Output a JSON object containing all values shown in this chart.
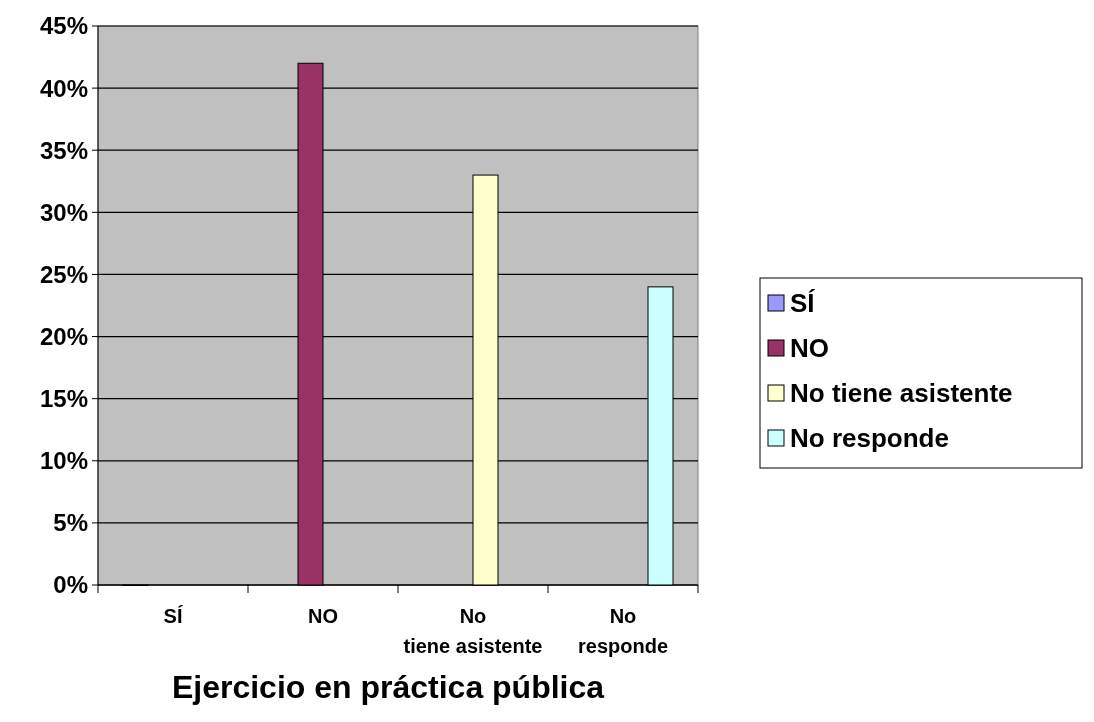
{
  "chart_data": {
    "type": "bar",
    "title": "Ejercicio en práctica pública",
    "categories": [
      "SÍ",
      "NO",
      "No tiene asistente",
      "No responde"
    ],
    "series": [
      {
        "name": "SÍ",
        "color": "#9999ff",
        "values": [
          0,
          null,
          null,
          null
        ]
      },
      {
        "name": "NO",
        "color": "#993366",
        "values": [
          null,
          42,
          null,
          null
        ]
      },
      {
        "name": "No tiene asistente",
        "color": "#ffffcc",
        "values": [
          null,
          null,
          33,
          null
        ]
      },
      {
        "name": "No responde",
        "color": "#ccffff",
        "values": [
          null,
          null,
          null,
          24
        ]
      }
    ],
    "ylim": [
      0,
      45
    ],
    "yticks": [
      {
        "value": 0,
        "label": "0%"
      },
      {
        "value": 5,
        "label": "5%"
      },
      {
        "value": 10,
        "label": "10%"
      },
      {
        "value": 15,
        "label": "15%"
      },
      {
        "value": 20,
        "label": "20%"
      },
      {
        "value": 25,
        "label": "25%"
      },
      {
        "value": 30,
        "label": "30%"
      },
      {
        "value": 35,
        "label": "35%"
      },
      {
        "value": 40,
        "label": "40%"
      },
      {
        "value": 45,
        "label": "45%"
      }
    ],
    "grid": "y",
    "legend": "right"
  }
}
